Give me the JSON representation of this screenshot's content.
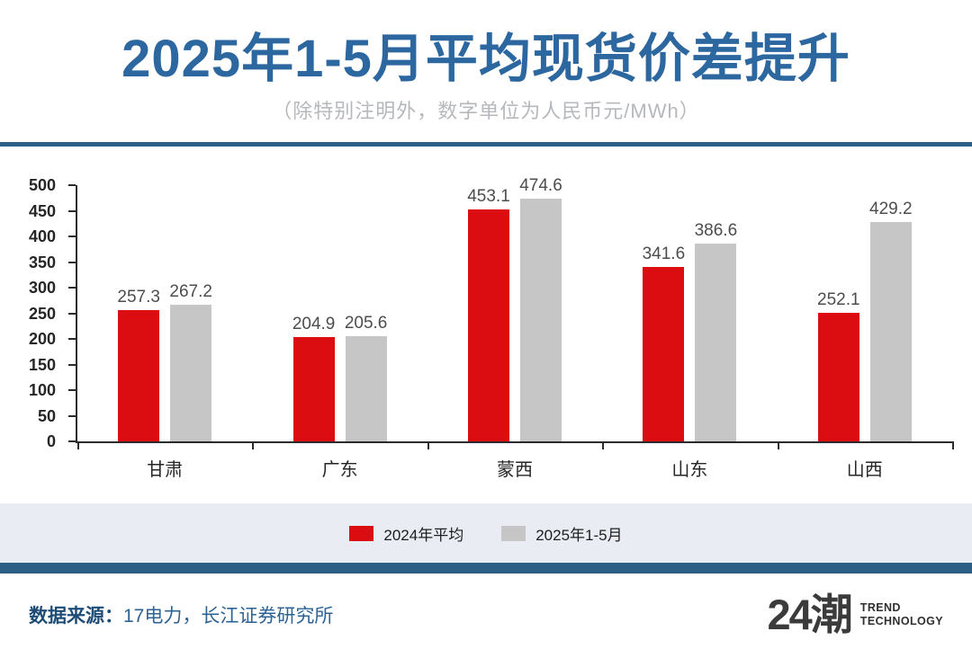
{
  "header": {
    "title": "2025年1-5月平均现货价差提升",
    "subtitle": "（除特别注明外，数字单位为人民币元/MWh）"
  },
  "chart_data": {
    "type": "bar",
    "title": "2025年1-5月平均现货价差提升",
    "unit_note": "除特别注明外，数字单位为人民币元/MWh",
    "categories": [
      "甘肃",
      "广东",
      "蒙西",
      "山东",
      "山西"
    ],
    "series": [
      {
        "name": "2024年平均",
        "color": "#dc0d10",
        "values": [
          257.3,
          204.9,
          453.1,
          341.6,
          252.1
        ]
      },
      {
        "name": "2025年1-5月",
        "color": "#c6c6c7",
        "values": [
          267.2,
          205.6,
          474.6,
          386.6,
          429.2
        ]
      }
    ],
    "ylim": [
      0,
      500
    ],
    "ytick_step": 50,
    "yticks": [
      0,
      50,
      100,
      150,
      200,
      250,
      300,
      350,
      400,
      450,
      500
    ],
    "grid": false,
    "value_labels": true,
    "legend_position": "bottom"
  },
  "footer": {
    "source_label": "数据来源：",
    "source_text": "17电力，长江证券研究所",
    "logo_text": "24潮",
    "logo_sub1": "TREND",
    "logo_sub2": "TECHNOLOGY"
  },
  "colors": {
    "title_blue": "#2d67a0",
    "divider_blue": "#2d5f86",
    "legend_band": "#e9edf3",
    "bar_red": "#dc0d10",
    "bar_gray": "#c6c6c7"
  }
}
